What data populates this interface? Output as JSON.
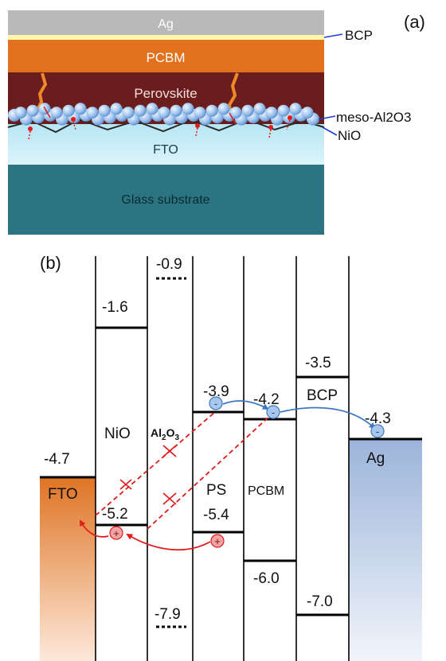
{
  "panel_a": {
    "panel_label": "(a)",
    "layers": {
      "ag": "Ag",
      "pcbm": "PCBM",
      "perovskite": "Perovskite",
      "fto": "FTO",
      "glass": "Glass substrate"
    },
    "callouts": {
      "bcp": "BCP",
      "meso": "meso-Al2O3",
      "nio": "NiO"
    },
    "colors": {
      "ag": "#b7b7b7",
      "bcp": "#fff7b3",
      "pcbm": "#e2711d",
      "perovskite": "#6b1c1c",
      "fto": "#c9edf7",
      "glass": "#2b7583",
      "callout_line": "#1a3fd6"
    }
  },
  "panel_b": {
    "panel_label": "(b)",
    "levels": {
      "al2o3_top": "-0.9",
      "nio_cb": "-1.6",
      "bcp_lumo": "-3.5",
      "ps_cb": "-3.9",
      "pcbm_lumo": "-4.2",
      "ag_wf": "-4.3",
      "fto_wf": "-4.7",
      "nio_vb": "-5.2",
      "ps_vb": "-5.4",
      "pcbm_homo": "-6.0",
      "bcp_homo": "-7.0",
      "al2o3_bottom": "-7.9"
    },
    "material_labels": {
      "nio": "NiO",
      "al2o3_main": "Al",
      "al2o3_sub1": "2",
      "al2o3_mid": "O",
      "al2o3_sub2": "3",
      "ps": "PS",
      "pcbm": "PCBM",
      "bcp": "BCP",
      "fto": "FTO",
      "ag": "Ag"
    },
    "charges": {
      "electron": "-",
      "hole": "+"
    },
    "colors": {
      "fto_top": "#e07a28",
      "fto_bottom": "#fbe6d6",
      "ag_top": "#9fb7dc",
      "ag_bottom": "#eef3fa",
      "electron_fill": "#a9c6ec",
      "hole_fill": "#f3a3a3",
      "electron_path": "#3d78c0",
      "hole_path": "#e01b1b"
    }
  }
}
